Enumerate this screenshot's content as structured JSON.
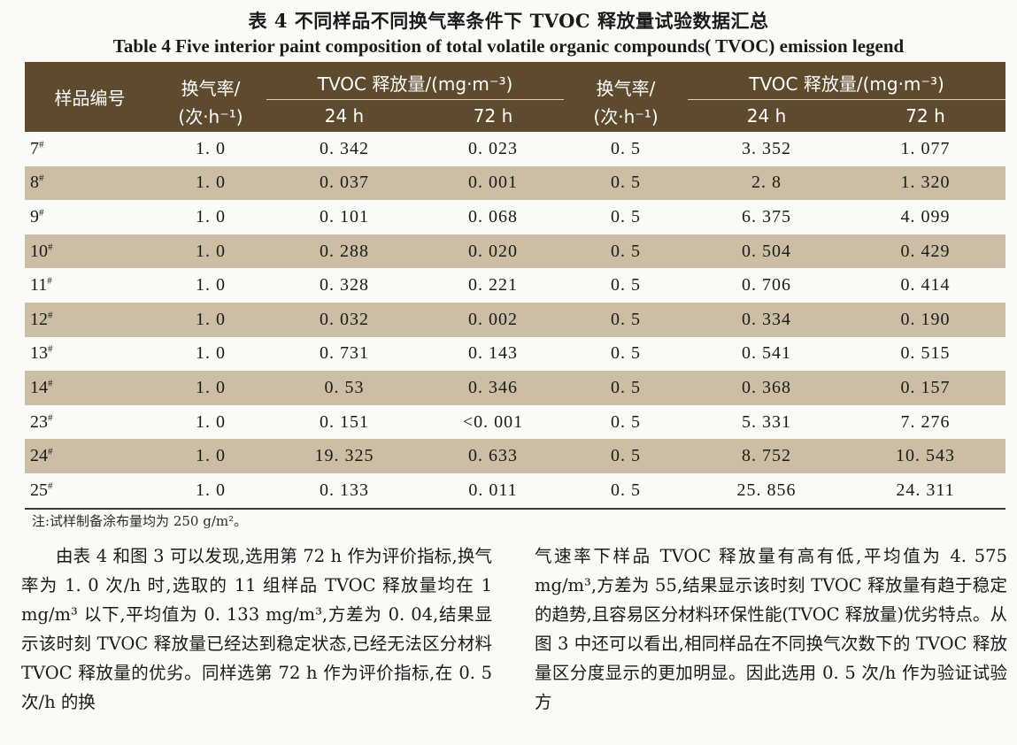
{
  "caption": {
    "cn": "表 4   不同样品不同换气率条件下 TVOC 释放量试验数据汇总",
    "en": "Table 4   Five interior paint composition of total volatile organic compounds( TVOC) emission legend"
  },
  "table": {
    "headers": {
      "sample": "样品编号",
      "rate_a": "换气率/",
      "rate_a_unit": "(次·h⁻¹)",
      "tvoc_a": "TVOC 释放量/(mg·m⁻³)",
      "h24_a": "24 h",
      "h72_a": "72 h",
      "rate_b": "换气率/",
      "rate_b_unit": "(次·h⁻¹)",
      "tvoc_b": "TVOC 释放量/(mg·m⁻³)",
      "h24_b": "24 h",
      "h72_b": "72 h"
    },
    "rows": [
      {
        "id": "7",
        "mark": "#",
        "rate1": "1. 0",
        "a24": "0. 342",
        "a72": "0. 023",
        "rate2": "0. 5",
        "b24": "3. 352",
        "b72": "1. 077"
      },
      {
        "id": "8",
        "mark": "#",
        "rate1": "1. 0",
        "a24": "0. 037",
        "a72": "0. 001",
        "rate2": "0. 5",
        "b24": "2. 8",
        "b72": "1. 320"
      },
      {
        "id": "9",
        "mark": "#",
        "rate1": "1. 0",
        "a24": "0. 101",
        "a72": "0. 068",
        "rate2": "0. 5",
        "b24": "6. 375",
        "b72": "4. 099"
      },
      {
        "id": "10",
        "mark": "#",
        "rate1": "1. 0",
        "a24": "0. 288",
        "a72": "0. 020",
        "rate2": "0. 5",
        "b24": "0. 504",
        "b72": "0. 429"
      },
      {
        "id": "11",
        "mark": "#",
        "rate1": "1. 0",
        "a24": "0. 328",
        "a72": "0. 221",
        "rate2": "0. 5",
        "b24": "0. 706",
        "b72": "0. 414"
      },
      {
        "id": "12",
        "mark": "#",
        "rate1": "1. 0",
        "a24": "0. 032",
        "a72": "0. 002",
        "rate2": "0. 5",
        "b24": "0. 334",
        "b72": "0. 190"
      },
      {
        "id": "13",
        "mark": "#",
        "rate1": "1. 0",
        "a24": "0. 731",
        "a72": "0. 143",
        "rate2": "0. 5",
        "b24": "0. 541",
        "b72": "0. 515"
      },
      {
        "id": "14",
        "mark": "#",
        "rate1": "1. 0",
        "a24": "0. 53",
        "a72": "0. 346",
        "rate2": "0. 5",
        "b24": "0. 368",
        "b72": "0. 157"
      },
      {
        "id": "23",
        "mark": "#",
        "rate1": "1. 0",
        "a24": "0. 151",
        "a72": "<0. 001",
        "rate2": "0. 5",
        "b24": "5. 331",
        "b72": "7. 276"
      },
      {
        "id": "24",
        "mark": "#",
        "rate1": "1. 0",
        "a24": "19. 325",
        "a72": "0. 633",
        "rate2": "0. 5",
        "b24": "8. 752",
        "b72": "10. 543"
      },
      {
        "id": "25",
        "mark": "#",
        "rate1": "1. 0",
        "a24": "0. 133",
        "a72": "0. 011",
        "rate2": "0. 5",
        "b24": "25. 856",
        "b72": "24. 311"
      }
    ],
    "shade_color": "#cbbea4",
    "header_color": "#5e4a2c"
  },
  "note": "注:试样制备涂布量均为 250 g/m²。",
  "body": {
    "left_column": "由表 4 和图 3 可以发现,选用第 72 h 作为评价指标,换气率为 1. 0 次/h 时,选取的 11 组样品 TVOC 释放量均在 1 mg/m³ 以下,平均值为 0. 133 mg/m³,方差为 0. 04,结果显示该时刻 TVOC 释放量已经达到稳定状态,已经无法区分材料 TVOC 释放量的优劣。同样选第 72 h 作为评价指标,在 0. 5 次/h 的换",
    "right_column": "气速率下样品 TVOC 释放量有高有低,平均值为 4. 575 mg/m³,方差为 55,结果显示该时刻 TVOC 释放量有趋于稳定的趋势,且容易区分材料环保性能(TVOC 释放量)优劣特点。从图 3 中还可以看出,相同样品在不同换气次数下的 TVOC 释放量区分度显示的更加明显。因此选用 0. 5 次/h 作为验证试验方"
  }
}
